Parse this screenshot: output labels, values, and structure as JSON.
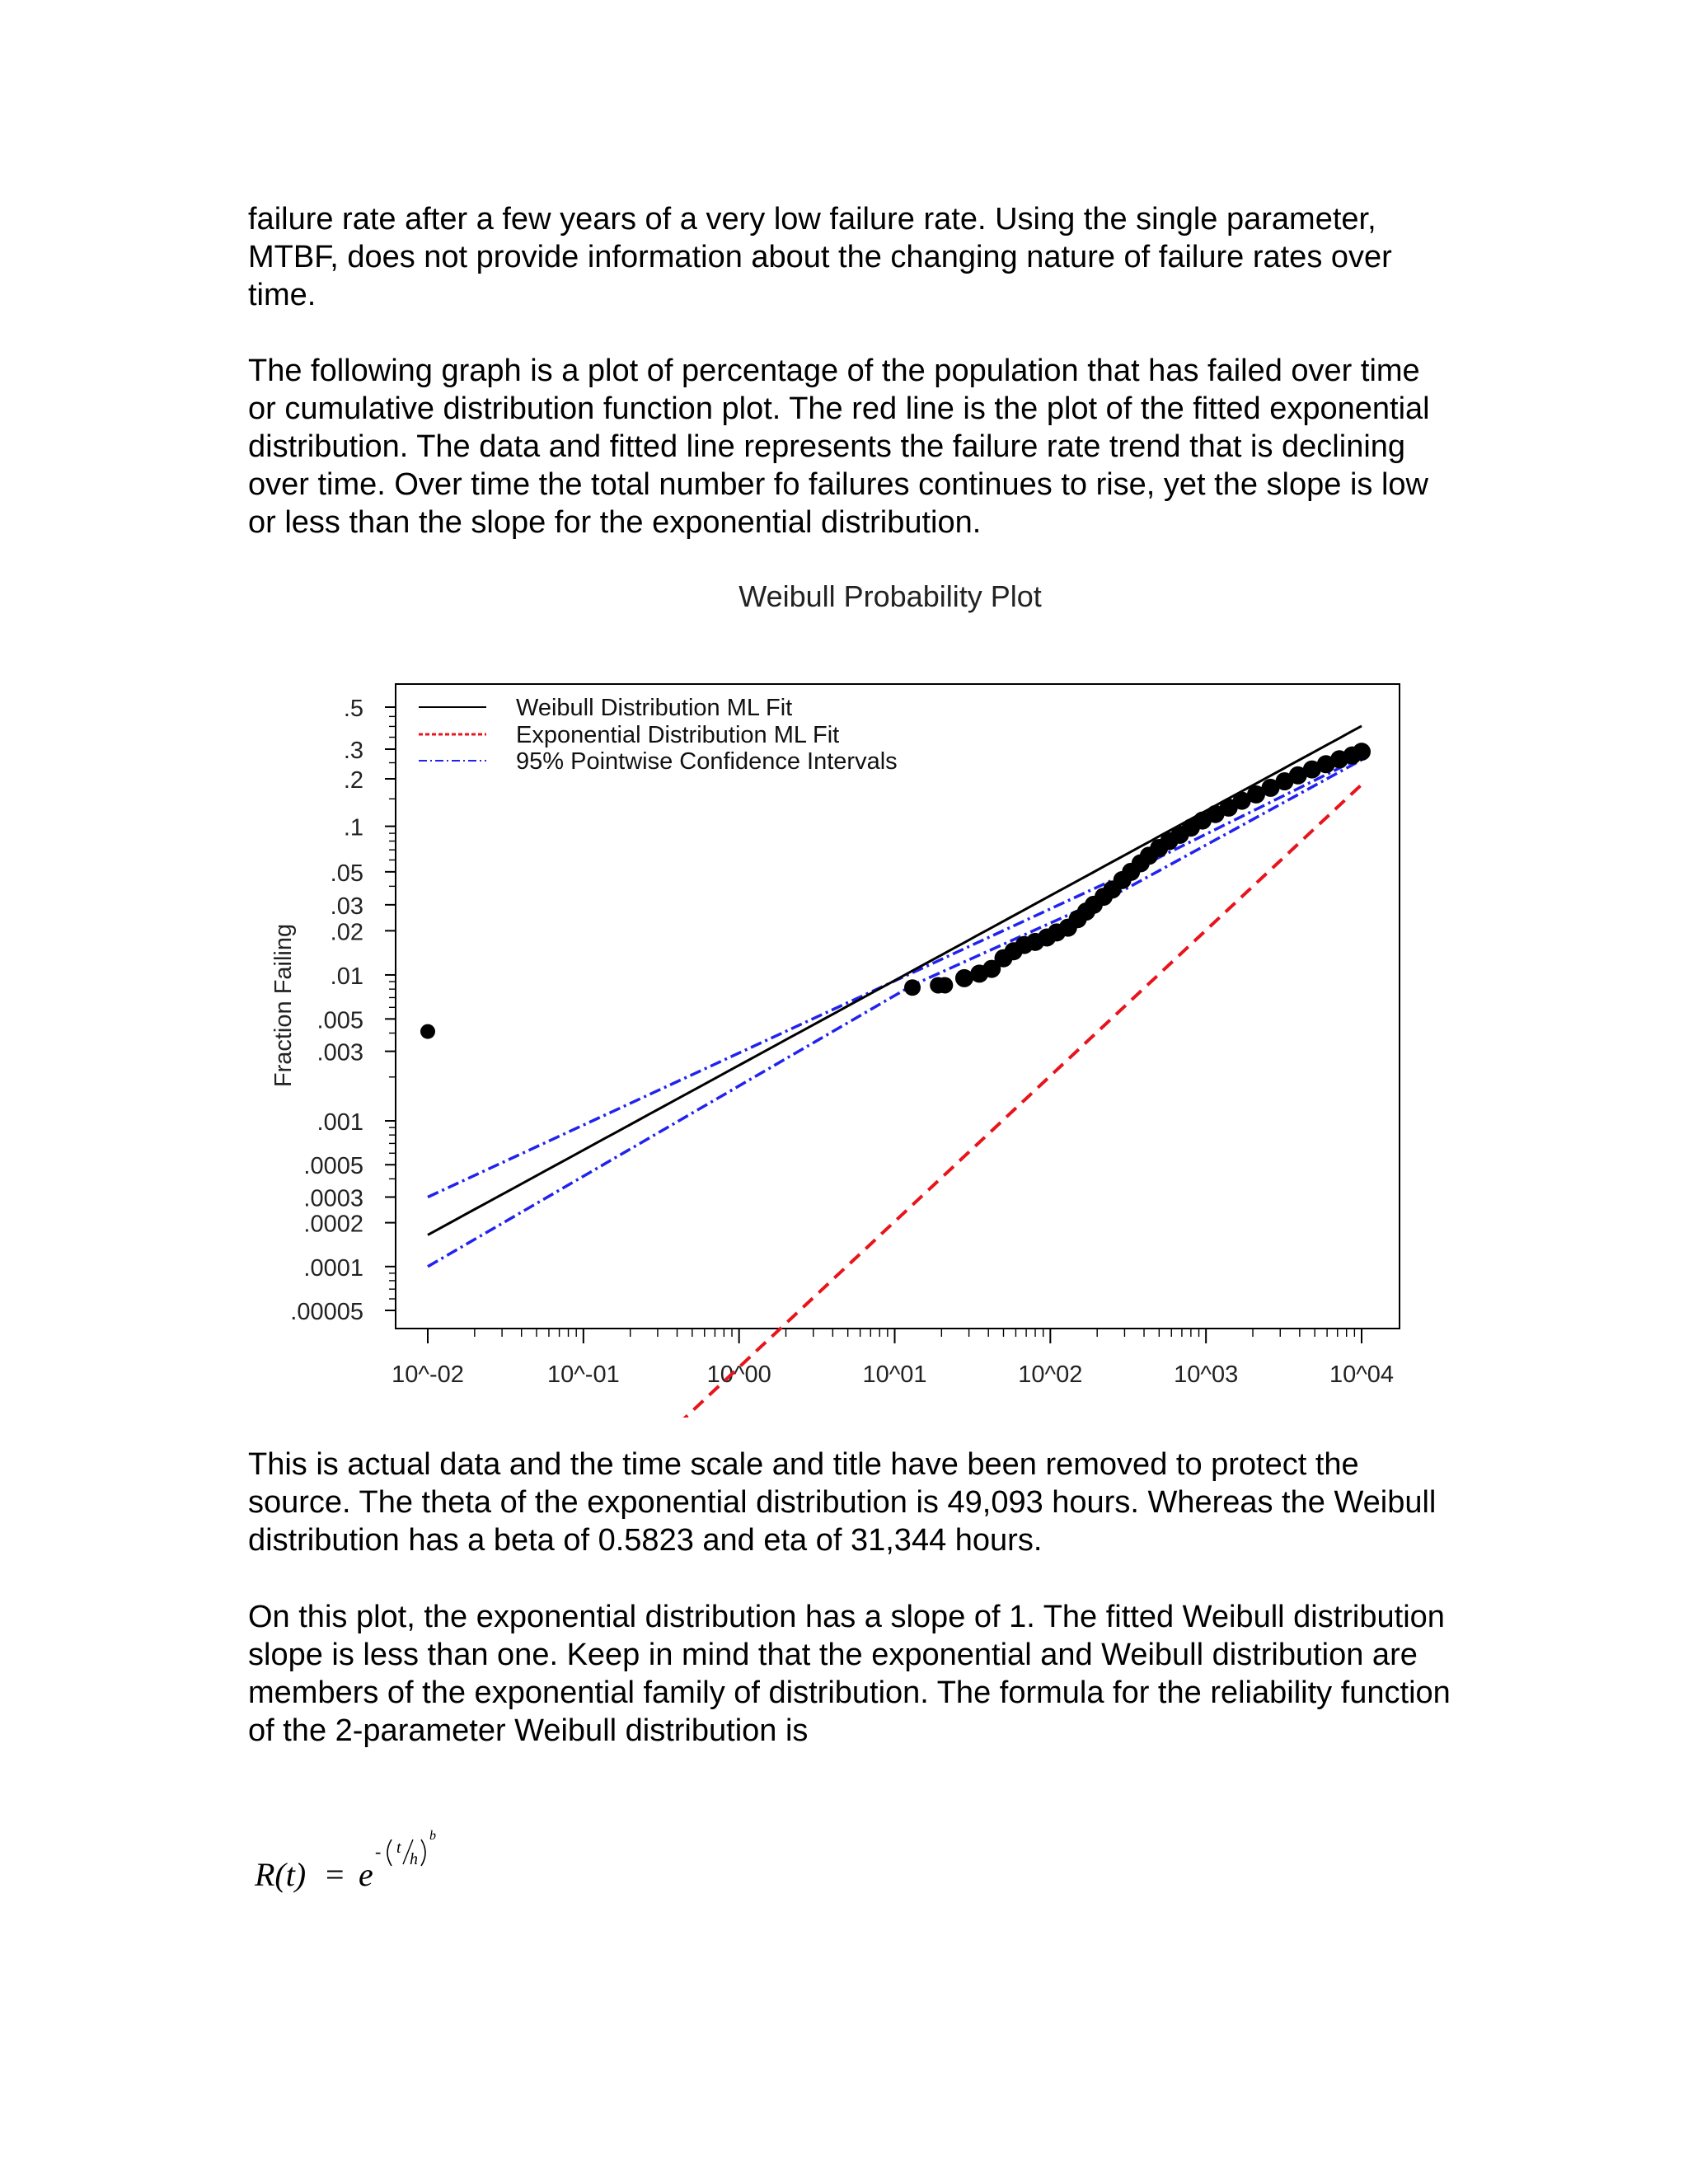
{
  "paragraphs": {
    "p1": "failure rate after a few years of a very low failure rate. Using the single parameter, MTBF, does not provide information about the changing nature of failure rates over time.",
    "p2": "The following graph is a plot of percentage of the population that has failed over time or cumulative distribution function plot. The red line is the plot of the fitted exponential distribution. The data and fitted line represents the failure rate trend that is declining over time. Over time the total number fo failures continues to rise, yet the slope is low or less than the slope for the exponential distribution.",
    "p3": "This is actual data and the time scale and title have been removed to protect the source. The theta of the exponential distribution is 49,093 hours. Whereas the Weibull distribution has a beta of 0.5823 and eta of 31,344 hours.",
    "p4": "On this plot, the exponential distribution has a slope of 1. The fitted Weibull distribution slope is less than one. Keep in mind that the exponential and Weibull distribution are members of the exponential family of distribution. The formula for the reliability function of the 2-parameter Weibull distribution is"
  },
  "formula": {
    "lhs": "R(t)",
    "equals": "=",
    "base": "e",
    "exp_minus": "-",
    "exp_num": "t",
    "exp_den": "h",
    "exp_power": "b"
  },
  "chart_data": {
    "type": "scatter",
    "title": "Weibull Probability Plot",
    "xlabel": "",
    "ylabel": "Fraction Failing",
    "x_scale": "log",
    "y_scale": "weibull",
    "xlim": [
      0.01,
      10000
    ],
    "ylim": [
      5e-05,
      0.5
    ],
    "x_ticks": [
      "10^-02",
      "10^-01",
      "10^00",
      "10^01",
      "10^02",
      "10^03",
      "10^04"
    ],
    "y_ticks": [
      ".5",
      ".3",
      ".2",
      ".1",
      ".05",
      ".03",
      ".02",
      ".01",
      ".005",
      ".003",
      ".001",
      ".0005",
      ".0003",
      ".0002",
      ".0001",
      ".00005"
    ],
    "grid": false,
    "legend_position": "top-left",
    "legend": [
      {
        "label": "Weibull Distribution ML Fit",
        "color": "#000000",
        "style": "solid"
      },
      {
        "label": "Exponential Distribution ML Fit",
        "color": "#e8141c",
        "style": "dashed"
      },
      {
        "label": "95% Pointwise Confidence Intervals",
        "color": "#2222ee",
        "style": "dashdot"
      }
    ],
    "weibull_fit": {
      "beta": 0.5823,
      "eta": 31344,
      "x_range": [
        0.01,
        10000
      ]
    },
    "exponential_fit": {
      "theta": 49093,
      "x_range": [
        0.04,
        10000
      ]
    },
    "ci_lower": [
      [
        0.01,
        0.0001
      ],
      [
        13,
        0.0085
      ],
      [
        300,
        0.038
      ],
      [
        10000,
        0.26
      ]
    ],
    "ci_upper": [
      [
        0.01,
        0.0003
      ],
      [
        300,
        0.048
      ],
      [
        10000,
        0.27
      ]
    ],
    "points": [
      [
        0.01,
        0.0041
      ],
      [
        13,
        0.0082
      ],
      [
        19,
        0.0085
      ],
      [
        21,
        0.0085
      ],
      [
        28,
        0.0095
      ],
      [
        35,
        0.0102
      ],
      [
        42,
        0.011
      ],
      [
        50,
        0.013
      ],
      [
        58,
        0.0145
      ],
      [
        68,
        0.016
      ],
      [
        80,
        0.0168
      ],
      [
        95,
        0.018
      ],
      [
        110,
        0.0195
      ],
      [
        130,
        0.021
      ],
      [
        150,
        0.024
      ],
      [
        170,
        0.027
      ],
      [
        190,
        0.03
      ],
      [
        220,
        0.034
      ],
      [
        250,
        0.038
      ],
      [
        290,
        0.044
      ],
      [
        330,
        0.05
      ],
      [
        380,
        0.057
      ],
      [
        430,
        0.064
      ],
      [
        500,
        0.072
      ],
      [
        580,
        0.08
      ],
      [
        680,
        0.088
      ],
      [
        800,
        0.098
      ],
      [
        950,
        0.109
      ],
      [
        1150,
        0.12
      ],
      [
        1400,
        0.132
      ],
      [
        1700,
        0.146
      ],
      [
        2100,
        0.16
      ],
      [
        2600,
        0.176
      ],
      [
        3200,
        0.193
      ],
      [
        3900,
        0.21
      ],
      [
        4800,
        0.228
      ],
      [
        5900,
        0.245
      ],
      [
        7200,
        0.262
      ],
      [
        8700,
        0.276
      ],
      [
        10000,
        0.29
      ]
    ]
  }
}
